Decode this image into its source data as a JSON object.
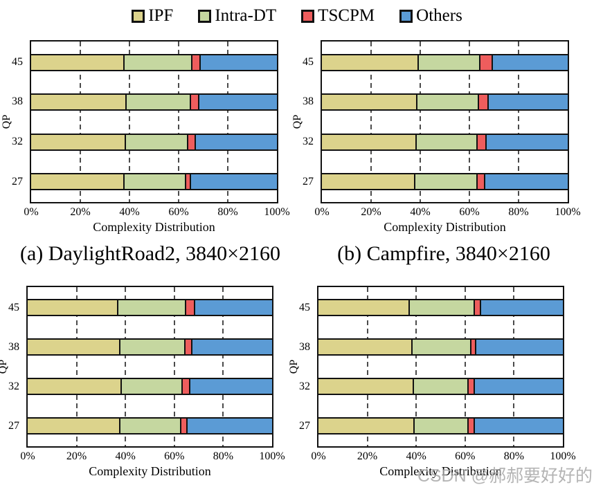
{
  "legend": {
    "items": [
      {
        "label": "IPF",
        "color": "#DCD38C"
      },
      {
        "label": "Intra-DT",
        "color": "#C5D7A0"
      },
      {
        "label": "TSCPM",
        "color": "#EE5D5D"
      },
      {
        "label": "Others",
        "color": "#5B9BD5"
      }
    ],
    "swatch_border_color": "#111111"
  },
  "captions": {
    "a": "(a) DaylightRoad2, 3840×2160",
    "b": "(b) Campfire, 3840×2160"
  },
  "watermark": "CSDN @郝郝要好好的",
  "chart_data": [
    {
      "id": "a",
      "type": "bar",
      "stacked": true,
      "orientation": "horizontal",
      "caption": "(a) DaylightRoad2, 3840×2160",
      "ylabel": "QP",
      "xlabel": "Complexity Distribution",
      "categories": [
        "45",
        "38",
        "32",
        "27"
      ],
      "x_ticks": [
        "0%",
        "20%",
        "40%",
        "60%",
        "80%",
        "100%"
      ],
      "xlim": [
        0,
        100
      ],
      "gridlines_pct": [
        20,
        40,
        60,
        80
      ],
      "grid_style": "dashed-vertical",
      "legend_position": "top-shared",
      "series": [
        {
          "name": "IPF",
          "values": [
            38,
            39,
            38.5,
            38
          ]
        },
        {
          "name": "Intra-DT",
          "values": [
            27.5,
            26,
            25.5,
            25
          ]
        },
        {
          "name": "TSCPM",
          "values": [
            3.5,
            3.5,
            3,
            2
          ]
        },
        {
          "name": "Others",
          "values": [
            31,
            31.5,
            33,
            35
          ]
        }
      ]
    },
    {
      "id": "b",
      "type": "bar",
      "stacked": true,
      "orientation": "horizontal",
      "caption": "(b) Campfire, 3840×2160",
      "ylabel": "QP",
      "xlabel": "Complexity Distribution",
      "categories": [
        "45",
        "38",
        "32",
        "27"
      ],
      "x_ticks": [
        "0%",
        "20%",
        "40%",
        "60%",
        "80%",
        "100%"
      ],
      "xlim": [
        0,
        100
      ],
      "gridlines_pct": [
        20,
        40,
        60,
        80
      ],
      "grid_style": "dashed-vertical",
      "legend_position": "top-shared",
      "series": [
        {
          "name": "IPF",
          "values": [
            39.5,
            39,
            38.5,
            38
          ]
        },
        {
          "name": "Intra-DT",
          "values": [
            25,
            25,
            25,
            25.5
          ]
        },
        {
          "name": "TSCPM",
          "values": [
            5,
            4,
            3.5,
            3
          ]
        },
        {
          "name": "Others",
          "values": [
            30.5,
            32,
            33,
            33.5
          ]
        }
      ]
    },
    {
      "id": "c",
      "type": "bar",
      "stacked": true,
      "orientation": "horizontal",
      "caption": "",
      "ylabel": "QP",
      "xlabel": "Complexity Distribution",
      "categories": [
        "45",
        "38",
        "32",
        "27"
      ],
      "x_ticks": [
        "0%",
        "20%",
        "40%",
        "60%",
        "80%",
        "100%"
      ],
      "xlim": [
        0,
        100
      ],
      "gridlines_pct": [
        20,
        40,
        60,
        80
      ],
      "grid_style": "dashed-vertical",
      "legend_position": "top-shared",
      "series": [
        {
          "name": "IPF",
          "values": [
            37,
            38,
            38.5,
            38
          ]
        },
        {
          "name": "Intra-DT",
          "values": [
            28,
            26.5,
            25,
            25
          ]
        },
        {
          "name": "TSCPM",
          "values": [
            3.5,
            3,
            3,
            2.5
          ]
        },
        {
          "name": "Others",
          "values": [
            31.5,
            32.5,
            33.5,
            34.5
          ]
        }
      ]
    },
    {
      "id": "d",
      "type": "bar",
      "stacked": true,
      "orientation": "horizontal",
      "caption": "",
      "ylabel": "QP",
      "xlabel": "Complexity Distribution",
      "categories": [
        "45",
        "38",
        "32",
        "27"
      ],
      "x_ticks": [
        "0%",
        "20%",
        "40%",
        "60%",
        "80%",
        "100%"
      ],
      "xlim": [
        0,
        100
      ],
      "gridlines_pct": [
        20,
        40,
        60,
        80
      ],
      "grid_style": "dashed-vertical",
      "legend_position": "top-shared",
      "series": [
        {
          "name": "IPF",
          "values": [
            37.5,
            38.5,
            39,
            39.5
          ]
        },
        {
          "name": "Intra-DT",
          "values": [
            26.5,
            24,
            22.5,
            22
          ]
        },
        {
          "name": "TSCPM",
          "values": [
            2.5,
            2,
            2.5,
            2.5
          ]
        },
        {
          "name": "Others",
          "values": [
            33.5,
            35.5,
            36,
            36
          ]
        }
      ]
    }
  ]
}
